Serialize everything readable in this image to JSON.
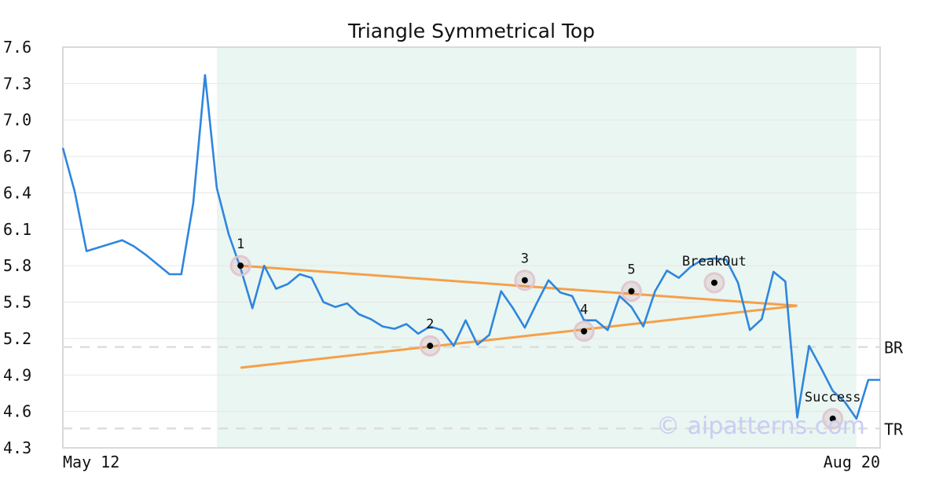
{
  "chart_data": {
    "type": "line",
    "title": "Triangle Symmetrical Top",
    "ylim": [
      4.3,
      7.6
    ],
    "y_ticks": [
      "7.6",
      "7.3",
      "7.0",
      "6.7",
      "6.4",
      "6.1",
      "5.8",
      "5.5",
      "5.2",
      "4.9",
      "4.6",
      "4.3"
    ],
    "x_ticks": [
      "May 12",
      "Aug 20"
    ],
    "grid": true,
    "series": [
      {
        "color": "#2e86de",
        "values": [
          6.77,
          6.41,
          5.92,
          5.95,
          5.98,
          6.01,
          5.96,
          5.89,
          5.81,
          5.73,
          5.73,
          6.31,
          7.37,
          6.44,
          6.06,
          5.78,
          5.45,
          5.8,
          5.61,
          5.65,
          5.73,
          5.7,
          5.5,
          5.46,
          5.49,
          5.4,
          5.36,
          5.3,
          5.28,
          5.32,
          5.24,
          5.3,
          5.27,
          5.14,
          5.35,
          5.15,
          5.23,
          5.59,
          5.45,
          5.29,
          5.49,
          5.68,
          5.58,
          5.55,
          5.35,
          5.35,
          5.27,
          5.55,
          5.46,
          5.3,
          5.59,
          5.76,
          5.7,
          5.79,
          5.85,
          5.86,
          5.85,
          5.66,
          5.27,
          5.36,
          5.75,
          5.67,
          4.55,
          5.14,
          4.96,
          4.77,
          4.68,
          4.54,
          4.86,
          4.86
        ]
      }
    ],
    "trendlines": [
      {
        "color": "#f4a04a",
        "from": {
          "x": 15,
          "y": 5.8
        },
        "to": {
          "x": 62,
          "y": 5.47
        }
      },
      {
        "color": "#f4a04a",
        "from": {
          "x": 15,
          "y": 4.96
        },
        "to": {
          "x": 62,
          "y": 5.47
        }
      }
    ],
    "pattern_range": {
      "from": 13,
      "to": 67,
      "color": "#eaf6f1"
    },
    "annotations": [
      {
        "label": "1",
        "x": 15,
        "y": 5.8
      },
      {
        "label": "2",
        "x": 31,
        "y": 5.14
      },
      {
        "label": "3",
        "x": 39,
        "y": 5.68
      },
      {
        "label": "4",
        "x": 44,
        "y": 5.26
      },
      {
        "label": "5",
        "x": 48,
        "y": 5.59
      },
      {
        "label": "BreakOut",
        "x": 55,
        "y": 5.66
      },
      {
        "label": "Success",
        "x": 65,
        "y": 4.54
      }
    ],
    "levels": [
      {
        "label": "BR",
        "y": 5.13
      },
      {
        "label": "TR",
        "y": 4.46
      }
    ]
  },
  "watermark": "© aipatterns.com"
}
